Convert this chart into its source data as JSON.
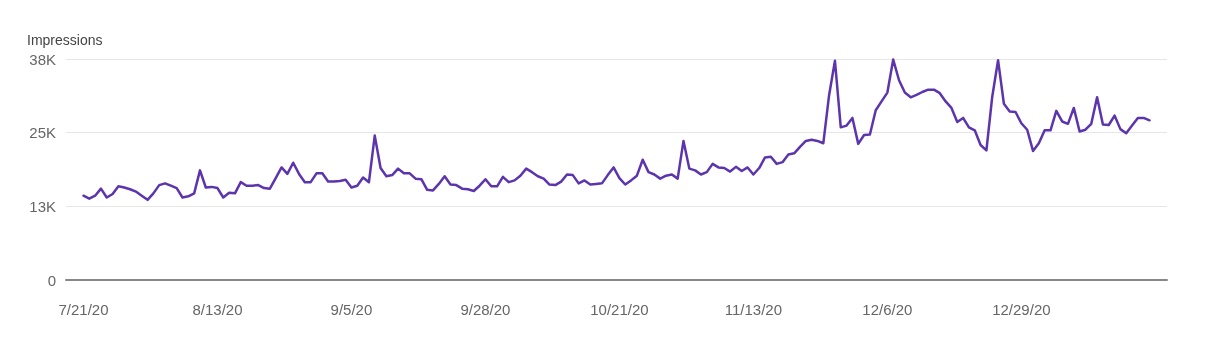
{
  "chart_data": {
    "type": "line",
    "ylabel": "Impressions",
    "color": "#5c35ad",
    "grid": "y",
    "marker": "none",
    "line_style": "solid",
    "xlim": [
      "2020-07-18",
      "2021-01-23"
    ],
    "xticks": [
      {
        "value": "2020-07-21",
        "label": "7/21/20"
      },
      {
        "value": "2020-08-13",
        "label": "8/13/20"
      },
      {
        "value": "2020-09-05",
        "label": "9/5/20"
      },
      {
        "value": "2020-09-28",
        "label": "9/28/20"
      },
      {
        "value": "2020-10-21",
        "label": "10/21/20"
      },
      {
        "value": "2020-11-13",
        "label": "11/13/20"
      },
      {
        "value": "2020-12-06",
        "label": "12/6/20"
      },
      {
        "value": "2020-12-29",
        "label": "12/29/20"
      }
    ],
    "ylim": [
      0,
      37500
    ],
    "yticks": [
      0,
      {
        "value": 12500,
        "label": "13K"
      },
      {
        "value": 25000,
        "label": "25K"
      },
      {
        "value": 37500,
        "label": "38K"
      }
    ],
    "x": [
      "2020-07-21",
      "2020-07-22",
      "2020-07-23",
      "2020-07-24",
      "2020-07-25",
      "2020-07-26",
      "2020-07-27",
      "2020-07-28",
      "2020-07-29",
      "2020-07-30",
      "2020-07-31",
      "2020-08-01",
      "2020-08-02",
      "2020-08-03",
      "2020-08-04",
      "2020-08-05",
      "2020-08-06",
      "2020-08-07",
      "2020-08-08",
      "2020-08-09",
      "2020-08-10",
      "2020-08-11",
      "2020-08-12",
      "2020-08-13",
      "2020-08-14",
      "2020-08-15",
      "2020-08-16",
      "2020-08-17",
      "2020-08-18",
      "2020-08-19",
      "2020-08-20",
      "2020-08-21",
      "2020-08-22",
      "2020-08-23",
      "2020-08-24",
      "2020-08-25",
      "2020-08-26",
      "2020-08-27",
      "2020-08-28",
      "2020-08-29",
      "2020-08-30",
      "2020-08-31",
      "2020-09-01",
      "2020-09-02",
      "2020-09-03",
      "2020-09-04",
      "2020-09-05",
      "2020-09-06",
      "2020-09-07",
      "2020-09-08",
      "2020-09-09",
      "2020-09-10",
      "2020-09-11",
      "2020-09-12",
      "2020-09-13",
      "2020-09-14",
      "2020-09-15",
      "2020-09-16",
      "2020-09-17",
      "2020-09-18",
      "2020-09-19",
      "2020-09-20",
      "2020-09-21",
      "2020-09-22",
      "2020-09-23",
      "2020-09-24",
      "2020-09-25",
      "2020-09-26",
      "2020-09-27",
      "2020-09-28",
      "2020-09-29",
      "2020-09-30",
      "2020-10-01",
      "2020-10-02",
      "2020-10-03",
      "2020-10-04",
      "2020-10-05",
      "2020-10-06",
      "2020-10-07",
      "2020-10-08",
      "2020-10-09",
      "2020-10-10",
      "2020-10-11",
      "2020-10-12",
      "2020-10-13",
      "2020-10-14",
      "2020-10-15",
      "2020-10-16",
      "2020-10-17",
      "2020-10-18",
      "2020-10-19",
      "2020-10-20",
      "2020-10-21",
      "2020-10-22",
      "2020-10-23",
      "2020-10-24",
      "2020-10-25",
      "2020-10-26",
      "2020-10-27",
      "2020-10-28",
      "2020-10-29",
      "2020-10-30",
      "2020-10-31",
      "2020-11-01",
      "2020-11-02",
      "2020-11-03",
      "2020-11-04",
      "2020-11-05",
      "2020-11-06",
      "2020-11-07",
      "2020-11-08",
      "2020-11-09",
      "2020-11-10",
      "2020-11-11",
      "2020-11-12",
      "2020-11-13",
      "2020-11-14",
      "2020-11-15",
      "2020-11-16",
      "2020-11-17",
      "2020-11-18",
      "2020-11-19",
      "2020-11-20",
      "2020-11-21",
      "2020-11-22",
      "2020-11-23",
      "2020-11-24",
      "2020-11-25",
      "2020-11-26",
      "2020-11-27",
      "2020-11-28",
      "2020-11-29",
      "2020-11-30",
      "2020-12-01",
      "2020-12-02",
      "2020-12-03",
      "2020-12-04",
      "2020-12-05",
      "2020-12-06",
      "2020-12-07",
      "2020-12-08",
      "2020-12-09",
      "2020-12-10",
      "2020-12-11",
      "2020-12-12",
      "2020-12-13",
      "2020-12-14",
      "2020-12-15",
      "2020-12-16",
      "2020-12-17",
      "2020-12-18",
      "2020-12-19",
      "2020-12-20",
      "2020-12-21",
      "2020-12-22",
      "2020-12-23",
      "2020-12-24",
      "2020-12-25",
      "2020-12-26",
      "2020-12-27",
      "2020-12-28",
      "2020-12-29",
      "2020-12-30",
      "2020-12-31",
      "2021-01-01",
      "2021-01-02",
      "2021-01-03",
      "2021-01-04",
      "2021-01-05",
      "2021-01-06",
      "2021-01-07",
      "2021-01-08",
      "2021-01-09",
      "2021-01-10",
      "2021-01-11",
      "2021-01-12",
      "2021-01-13",
      "2021-01-14",
      "2021-01-15",
      "2021-01-16",
      "2021-01-17",
      "2021-01-18",
      "2021-01-19",
      "2021-01-20"
    ],
    "values": [
      14300,
      13800,
      14300,
      15500,
      14000,
      14600,
      15900,
      15700,
      15400,
      15000,
      14300,
      13600,
      14700,
      16100,
      16400,
      16000,
      15600,
      14000,
      14200,
      14700,
      18600,
      15700,
      15800,
      15600,
      14000,
      14800,
      14700,
      16600,
      16000,
      16000,
      16100,
      15600,
      15500,
      17300,
      19100,
      18000,
      19900,
      18000,
      16600,
      16600,
      18100,
      18100,
      16700,
      16700,
      16800,
      17000,
      15700,
      16000,
      17400,
      16600,
      24500,
      19000,
      17600,
      17800,
      18900,
      18100,
      18100,
      17200,
      17100,
      15300,
      15200,
      16300,
      17600,
      16200,
      16100,
      15500,
      15400,
      15100,
      16000,
      17100,
      15900,
      15900,
      17500,
      16600,
      16900,
      17700,
      18900,
      18300,
      17600,
      17200,
      16200,
      16100,
      16700,
      17900,
      17800,
      16400,
      16900,
      16200,
      16300,
      16400,
      17800,
      19100,
      17300,
      16200,
      16900,
      17700,
      20400,
      18300,
      17900,
      17200,
      17700,
      17900,
      17200,
      23600,
      18900,
      18600,
      17900,
      18300,
      19700,
      19100,
      19000,
      18400,
      19200,
      18500,
      19100,
      17900,
      19000,
      20800,
      20900,
      19700,
      20000,
      21300,
      21500,
      22600,
      23600,
      23800,
      23600,
      23200,
      31400,
      37200,
      25900,
      26200,
      27500,
      23100,
      24600,
      24700,
      28800,
      30300,
      31800,
      37400,
      33900,
      31800,
      31000,
      31400,
      31900,
      32300,
      32300,
      31700,
      30300,
      29200,
      26800,
      27500,
      25900,
      25400,
      22900,
      22000,
      31100,
      37300,
      29900,
      28600,
      28500,
      26600,
      25500,
      21900,
      23200,
      25400,
      25400,
      28700,
      26900,
      26500,
      29200,
      25200,
      25500,
      26500,
      31000,
      26400,
      26300,
      27900,
      25600,
      24900,
      26200,
      27500,
      27500,
      27100
    ]
  }
}
